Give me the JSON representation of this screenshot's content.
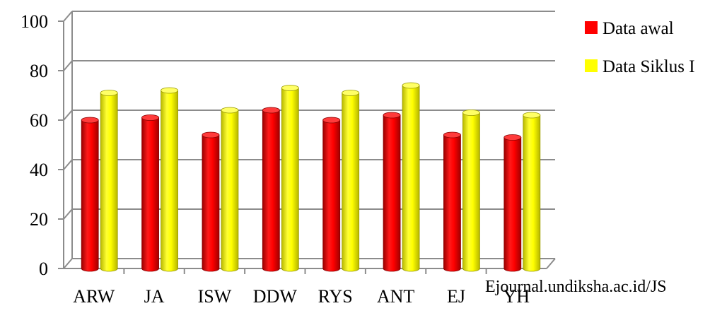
{
  "chart_data": {
    "type": "bar",
    "categories": [
      "ARW",
      "JA",
      "ISW",
      "DDW",
      "RYS",
      "ANT",
      "EJ",
      "YH"
    ],
    "series": [
      {
        "name": "Data awal",
        "color": "#ff0000",
        "values": [
          60,
          61,
          54,
          64,
          60,
          62,
          54,
          53
        ]
      },
      {
        "name": "Data Siklus I",
        "color": "#ffff00",
        "values": [
          71,
          72,
          64,
          73,
          71,
          74,
          63,
          62
        ]
      }
    ],
    "yticks": [
      0,
      20,
      40,
      60,
      80,
      100
    ],
    "ylim": [
      0,
      100
    ],
    "grid": true,
    "legend": "right",
    "title": "",
    "xlabel": "",
    "ylabel": ""
  },
  "watermark": "Ejournal.undiksha.ac.id/JS"
}
